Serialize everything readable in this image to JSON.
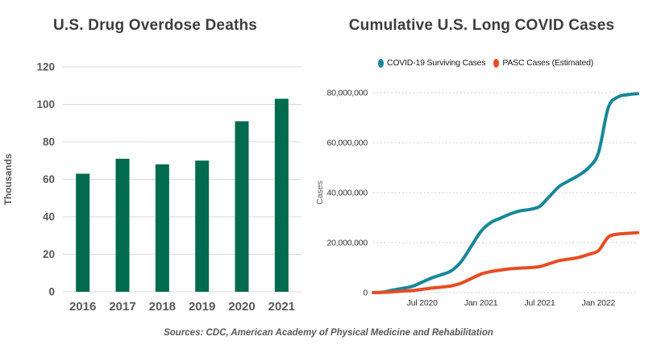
{
  "footer": {
    "text": "Sources: CDC, American Academy of Physical Medicine and Rehabilitation"
  },
  "colors": {
    "bar_green": "#006B4E",
    "teal_line": "#17879A",
    "orange_line": "#E84C22",
    "grid_solid": "#D9D9D9",
    "grid_dotted": "#BFBFBF",
    "axis_text_bold": "#595959",
    "axis_text_small": "#333333",
    "title_text": "#3d3d3d"
  },
  "chart_data": [
    {
      "type": "bar",
      "title": "U.S. Drug Overdose Deaths",
      "xlabel": "",
      "ylabel": "Thousands",
      "categories": [
        "2016",
        "2017",
        "2018",
        "2019",
        "2020",
        "2021"
      ],
      "values": [
        63,
        71,
        68,
        70,
        91,
        103
      ],
      "ylim": [
        0,
        120
      ],
      "yticks": [
        0,
        20,
        40,
        60,
        80,
        100,
        120
      ],
      "grid": "solid horizontal",
      "legend_position": "none",
      "bar_color": "#006B4E"
    },
    {
      "type": "line",
      "title": "Cumulative U.S. Long COVID Cases",
      "xlabel": "",
      "ylabel": "Cases",
      "ylim": [
        0,
        80000000
      ],
      "yticks": [
        0,
        20000000,
        40000000,
        60000000,
        80000000
      ],
      "ytick_labels": [
        "0",
        "20,000,000",
        "40,000,000",
        "60,000,000",
        "80,000,000"
      ],
      "grid": "dotted horizontal",
      "legend_position": "top center",
      "x": [
        "Feb 2020",
        "Mar 2020",
        "Apr 2020",
        "May 2020",
        "Jun 2020",
        "Jul 2020",
        "Aug 2020",
        "Sep 2020",
        "Oct 2020",
        "Nov 2020",
        "Dec 2020",
        "Jan 2021",
        "Feb 2021",
        "Mar 2021",
        "Apr 2021",
        "May 2021",
        "Jun 2021",
        "Jul 2021",
        "Aug 2021",
        "Sep 2021",
        "Oct 2021",
        "Nov 2021",
        "Dec 2021",
        "Jan 2022",
        "Feb 2022",
        "Mar 2022",
        "Apr 2022",
        "May 2022"
      ],
      "x_tick_labels": [
        "Jul 2020",
        "Jan 2021",
        "Jul 2021",
        "Jan 2022"
      ],
      "x_tick_indices": [
        5,
        11,
        17,
        23
      ],
      "series": [
        {
          "name": "COVID-19 Surviving Cases",
          "color": "#17879A",
          "values": [
            0,
            200000,
            1000000,
            1700000,
            2500000,
            4200000,
            5900000,
            7200000,
            8800000,
            12500000,
            18500000,
            24500000,
            28000000,
            29800000,
            31500000,
            32700000,
            33300000,
            34500000,
            38500000,
            42500000,
            44800000,
            47000000,
            50000000,
            56000000,
            74000000,
            78300000,
            79200000,
            79600000
          ]
        },
        {
          "name": "PASC Cases (Estimated)",
          "color": "#E84C22",
          "values": [
            0,
            100000,
            300000,
            600000,
            800000,
            1300000,
            1800000,
            2200000,
            2700000,
            3800000,
            5600000,
            7400000,
            8400000,
            9000000,
            9500000,
            9800000,
            10000000,
            10400000,
            11600000,
            12800000,
            13400000,
            14100000,
            15300000,
            16800000,
            22200000,
            23400000,
            23700000,
            24000000
          ]
        }
      ]
    }
  ]
}
